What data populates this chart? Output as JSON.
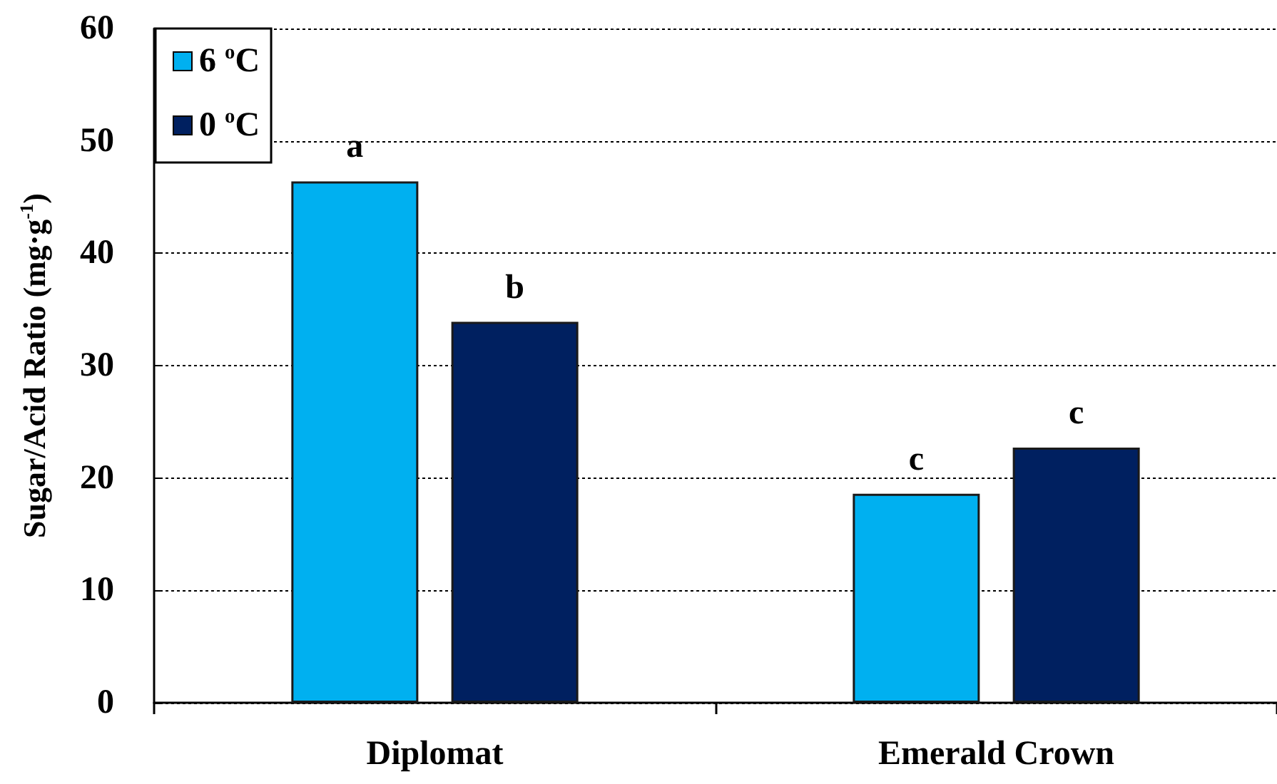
{
  "chart_data": {
    "type": "bar",
    "ylabel": "Sugar/Acid Ratio (mg·g$^{-1}$)",
    "categories": [
      "Diplomat",
      "Emerald Crown"
    ],
    "series": [
      {
        "name": "6 $^{o}$C",
        "color": "#00b0f0",
        "values": [
          46.4,
          18.6
        ]
      },
      {
        "name": "0 $^{o}$C",
        "color": "#002060",
        "values": [
          33.9,
          22.7
        ]
      }
    ],
    "ylim": [
      0,
      60
    ],
    "yticks": [
      0,
      10,
      20,
      30,
      40,
      50,
      60
    ],
    "grid": "y",
    "legend": "top left",
    "annotations": [
      "a",
      "b",
      "c",
      "c"
    ]
  }
}
